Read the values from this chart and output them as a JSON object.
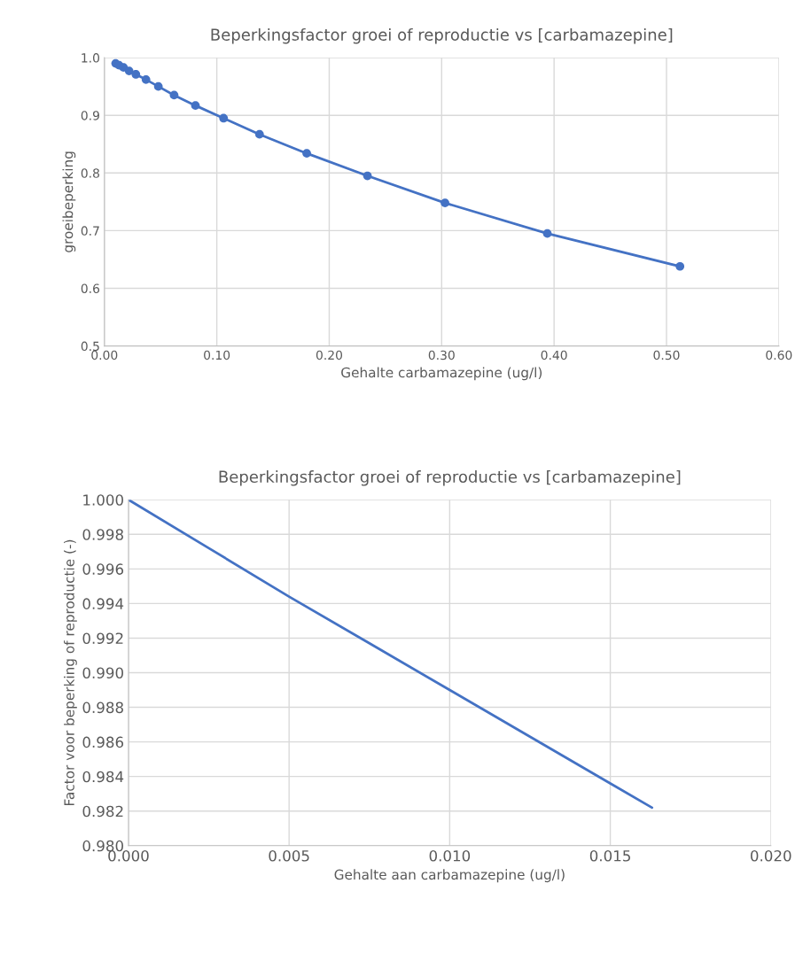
{
  "chart_data": [
    {
      "type": "line",
      "title": "Beperkingsfactor groei of reproductie vs [carbamazepine]",
      "xlabel": "Gehalte carbamazepine (ug/l)",
      "ylabel": "groeibeperking",
      "x": [
        0.01,
        0.013,
        0.017,
        0.022,
        0.028,
        0.037,
        0.048,
        0.062,
        0.081,
        0.106,
        0.138,
        0.18,
        0.234,
        0.303,
        0.394,
        0.512
      ],
      "series": [
        {
          "color": "#4472c4",
          "values": [
            0.99,
            0.987,
            0.983,
            0.977,
            0.971,
            0.962,
            0.95,
            0.935,
            0.917,
            0.895,
            0.867,
            0.834,
            0.795,
            0.748,
            0.695,
            0.638
          ]
        }
      ],
      "xlim": [
        0,
        0.6
      ],
      "xticks": [
        {
          "value": 0,
          "label": "0.00"
        },
        {
          "value": 0.1,
          "label": "0.10"
        },
        {
          "value": 0.2,
          "label": "0.20"
        },
        {
          "value": 0.3,
          "label": "0.30"
        },
        {
          "value": 0.4,
          "label": "0.40"
        },
        {
          "value": 0.5,
          "label": "0.50"
        },
        {
          "value": 0.6,
          "label": "0.60"
        }
      ],
      "ylim": [
        0.5,
        1.0
      ],
      "yticks": [
        0.5,
        0.6,
        0.7,
        0.8,
        0.9,
        {
          "value": 1.0,
          "label": "1.0"
        }
      ],
      "grid": true,
      "marker": "circle",
      "line_style": "solid"
    },
    {
      "type": "line",
      "title": "Beperkingsfactor groei of reproductie vs [carbamazepine]",
      "xlabel": "Gehalte aan carbamazepine (ug/l)",
      "ylabel": "Factor voor beperking of reproductie (-)",
      "x": [
        0,
        0.0025,
        0.005,
        0.0075,
        0.01,
        0.0125,
        0.015,
        0.0163
      ],
      "series": [
        {
          "color": "#4472c4",
          "values": [
            1.0,
            0.9972,
            0.9944,
            0.9917,
            0.989,
            0.9863,
            0.9836,
            0.9822
          ]
        }
      ],
      "xlim": [
        0,
        0.02
      ],
      "xticks": [
        {
          "value": 0,
          "label": "0.000"
        },
        {
          "value": 0.005,
          "label": "0.005"
        },
        {
          "value": 0.01,
          "label": "0.010"
        },
        {
          "value": 0.015,
          "label": "0.015"
        },
        {
          "value": 0.02,
          "label": "0.020"
        }
      ],
      "ylim": [
        0.98,
        1.0
      ],
      "yticks": [
        {
          "value": 0.98,
          "label": "0.980"
        },
        {
          "value": 0.982,
          "label": "0.982"
        },
        {
          "value": 0.984,
          "label": "0.984"
        },
        {
          "value": 0.986,
          "label": "0.986"
        },
        {
          "value": 0.988,
          "label": "0.988"
        },
        {
          "value": 0.99,
          "label": "0.990"
        },
        {
          "value": 0.992,
          "label": "0.992"
        },
        {
          "value": 0.994,
          "label": "0.994"
        },
        {
          "value": 0.996,
          "label": "0.996"
        },
        {
          "value": 0.998,
          "label": "0.998"
        },
        {
          "value": 1.0,
          "label": "1.000"
        }
      ],
      "grid": true,
      "marker": "none",
      "line_style": "solid"
    }
  ]
}
